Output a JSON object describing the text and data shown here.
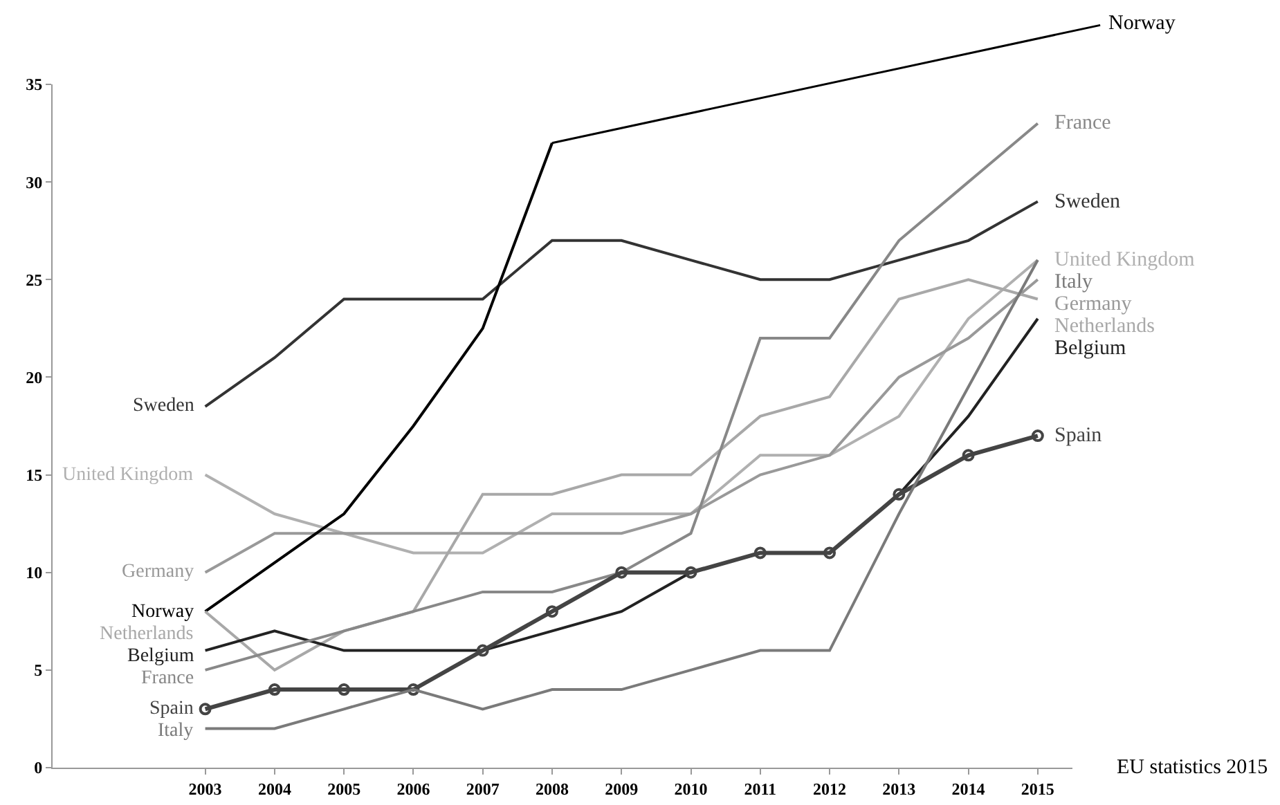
{
  "chart_data": {
    "type": "line",
    "x": [
      2003,
      2004,
      2005,
      2006,
      2007,
      2008,
      2009,
      2010,
      2011,
      2012,
      2013,
      2014,
      2015
    ],
    "xlim": [
      2000.8,
      2015.5
    ],
    "xticks": [
      2003,
      2004,
      2005,
      2006,
      2007,
      2008,
      2009,
      2010,
      2011,
      2012,
      2013,
      2014,
      2015
    ],
    "ylim": [
      0,
      35
    ],
    "yticks": [
      0,
      5,
      10,
      15,
      20,
      25,
      30,
      35
    ],
    "grid": false,
    "legend": false,
    "marker": "none",
    "line_style": "solid",
    "series": [
      {
        "name": "Sweden",
        "color": "#333333",
        "values": [
          18.5,
          21,
          24,
          24,
          24,
          27,
          27,
          26,
          25,
          25,
          26,
          27,
          29
        ]
      },
      {
        "name": "United Kingdom",
        "color": "#b0b0b0",
        "values": [
          15,
          13,
          12,
          11,
          11,
          13,
          13,
          13,
          16,
          16,
          18,
          23,
          26
        ]
      },
      {
        "name": "Germany",
        "color": "#999999",
        "values": [
          10,
          12,
          12,
          12,
          12,
          12,
          12,
          13,
          15,
          16,
          20,
          22,
          25
        ]
      },
      {
        "name": "Norway",
        "color": "#000000",
        "x": [
          2003,
          2004,
          2005,
          2006,
          2007,
          2008
        ],
        "values": [
          8,
          10.5,
          13,
          17.5,
          22.5,
          32
        ]
      },
      {
        "name": "Netherlands",
        "color": "#a8a8a8",
        "values": [
          8,
          5,
          7,
          8,
          14,
          14,
          15,
          15,
          18,
          19,
          24,
          25,
          24
        ]
      },
      {
        "name": "Belgium",
        "color": "#222222",
        "values": [
          6,
          7,
          6,
          6,
          6,
          7,
          8,
          10,
          11,
          11,
          14,
          18,
          23
        ]
      },
      {
        "name": "France",
        "color": "#888888",
        "values": [
          5,
          6,
          7,
          8,
          9,
          9,
          10,
          12,
          22,
          22,
          27,
          30,
          33
        ]
      },
      {
        "name": "Spain",
        "color": "#444444",
        "marker": "circle",
        "values": [
          3,
          4,
          4,
          4,
          6,
          8,
          10,
          10,
          11,
          11,
          14,
          16,
          17
        ]
      },
      {
        "name": "Italy",
        "color": "#7a7a7a",
        "values": [
          2,
          2,
          3,
          4,
          3,
          4,
          4,
          5,
          6,
          6,
          13,
          19.5,
          26
        ]
      }
    ],
    "annotations": [
      "EU statistics 2015"
    ]
  }
}
